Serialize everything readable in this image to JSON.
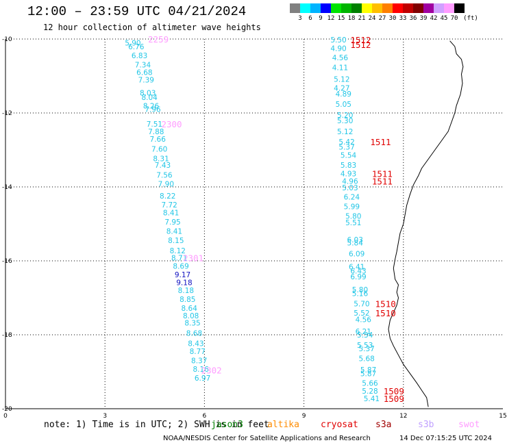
{
  "header": {
    "title": "12:00 – 23:59 UTC 04/21/2024",
    "subtitle": "12 hour collection of altimeter wave heights"
  },
  "color_scale": {
    "unit": "(ft)",
    "labels": [
      "3",
      "6",
      "9",
      "12",
      "15",
      "18",
      "21",
      "24",
      "27",
      "30",
      "33",
      "36",
      "39",
      "42",
      "45",
      "70"
    ],
    "colors": [
      "#808080",
      "#00ffff",
      "#00b4ff",
      "#0000ff",
      "#00e400",
      "#00b400",
      "#008000",
      "#ffff00",
      "#ffbf00",
      "#ff8000",
      "#ff0000",
      "#c00000",
      "#800000",
      "#a000a0",
      "#d0a0ff",
      "#ff9cff",
      "#000000"
    ]
  },
  "chart_data": {
    "type": "scatter",
    "title": "12:00 – 23:59 UTC 04/21/2024",
    "subtitle": "12 hour collection of altimeter wave heights",
    "xlim": [
      0,
      15
    ],
    "ylim": [
      -20,
      -10
    ],
    "x_ticks": [
      "0",
      "3",
      "6",
      "9",
      "12",
      "15"
    ],
    "y_ticks": [
      "-10",
      "-12",
      "-14",
      "-16",
      "-18",
      "-20"
    ],
    "grid": true,
    "legend_placement": "bottom",
    "track_a": {
      "lat": [
        -10.1,
        -10.2,
        -10.44,
        -10.69,
        -10.9,
        -11.1,
        -11.45,
        -11.57,
        -11.81,
        -11.9,
        -12.3,
        -12.5,
        -12.7,
        -12.97,
        -13.23,
        -13.41,
        -13.68,
        -13.92,
        -14.24,
        -14.48,
        -14.69,
        -14.94,
        -15.19,
        -15.44,
        -15.72,
        -15.92,
        -16.14,
        -16.37,
        -16.58,
        -16.8,
        -17.04,
        -17.28,
        -17.48,
        -17.68,
        -17.95,
        -18.23,
        -18.44,
        -18.69,
        -18.93,
        -19.17,
        -19.4,
        -19.68,
        -19.93
      ],
      "hs": [
        "5.90",
        "6.76",
        "6.83",
        "7.34",
        "6.68",
        "7.39",
        "8.03",
        "8.04",
        "8.26",
        "7.96",
        "7.51",
        "7.88",
        "7.66",
        "7.60",
        "8.31",
        "7.43",
        "7.56",
        "7.90",
        "8.22",
        "7.72",
        "8.41",
        "7.95",
        "8.41",
        "8.15",
        "8.12",
        "8.71",
        "8.69",
        "9.17",
        "9.18",
        "8.18",
        "8.85",
        "8.64",
        "8.08",
        "8.35",
        "8.68",
        "8.43",
        "8.77",
        "8.37",
        "8.16",
        "6.97",
        "",
        "",
        ""
      ],
      "lon": [
        3.6,
        3.7,
        3.8,
        3.9,
        3.95,
        4.0,
        4.05,
        4.1,
        4.15,
        4.2,
        4.25,
        4.3,
        4.35,
        4.4,
        4.45,
        4.5,
        4.55,
        4.6,
        4.65,
        4.7,
        4.75,
        4.8,
        4.85,
        4.9,
        4.95,
        5.0,
        5.05,
        5.1,
        5.15,
        5.2,
        5.25,
        5.3,
        5.35,
        5.4,
        5.45,
        5.5,
        5.55,
        5.6,
        5.65,
        5.7,
        5.75,
        5.8,
        5.85
      ]
    },
    "track_b": {
      "lat": [
        -10.02,
        -10.25,
        -10.5,
        -10.77,
        -11.08,
        -11.32,
        -11.48,
        -11.76,
        -12.06,
        -12.2,
        -12.5,
        -12.78,
        -12.92,
        -13.14,
        -13.41,
        -13.64,
        -13.84,
        -14.02,
        -14.27,
        -14.53,
        -14.79,
        -14.96,
        -15.43,
        -15.51,
        -15.81,
        -16.16,
        -16.27,
        -16.43,
        -16.78,
        -16.88,
        -17.16,
        -17.41,
        -17.58,
        -17.91,
        -18.0,
        -18.28,
        -18.37,
        -18.64,
        -18.94,
        -19.05,
        -19.31,
        -19.52,
        -19.72
      ],
      "hs": [
        "5.50",
        "4.90",
        "4.56",
        "4.11",
        "5.12",
        "4.27",
        "4.89",
        "5.05",
        "5.20",
        "5.30",
        "5.12",
        "5.42",
        "5.37",
        "5.54",
        "5.83",
        "4.93",
        "4.96",
        "5.03",
        "6.24",
        "5.99",
        "5.80",
        "5.51",
        "6.03",
        "5.84",
        "6.09",
        "6.41",
        "6.43",
        "6.99",
        "5.80",
        "5.16",
        "5.70",
        "5.52",
        "4.56",
        "6.21",
        "5.34",
        "5.53",
        "5.37",
        "5.68",
        "5.87",
        "5.87",
        "5.66",
        "5.28",
        "5.41"
      ],
      "lon": [
        9.8,
        9.8,
        9.85,
        9.85,
        9.9,
        9.9,
        9.95,
        9.95,
        10.0,
        10.0,
        10.0,
        10.05,
        10.05,
        10.1,
        10.1,
        10.1,
        10.15,
        10.15,
        10.2,
        10.2,
        10.25,
        10.25,
        10.3,
        10.3,
        10.35,
        10.35,
        10.4,
        10.4,
        10.45,
        10.45,
        10.5,
        10.5,
        10.55,
        10.55,
        10.6,
        10.6,
        10.65,
        10.65,
        10.7,
        10.7,
        10.75,
        10.75,
        10.8
      ]
    },
    "time_labels": [
      {
        "text": "2259",
        "lat": -10.0,
        "lon": 4.3,
        "color": "#ff9cff"
      },
      {
        "text": "2300",
        "lat": -12.3,
        "lon": 4.7,
        "color": "#ff9cff"
      },
      {
        "text": "2301",
        "lat": -15.92,
        "lon": 5.35,
        "color": "#ff9cff"
      },
      {
        "text": "2302",
        "lat": -18.95,
        "lon": 5.9,
        "color": "#ff9cff"
      },
      {
        "text": "1512",
        "lat": -10.02,
        "lon": 10.4,
        "color": "#e00000"
      },
      {
        "text": "1512",
        "lat": -10.15,
        "lon": 10.4,
        "color": "#e00000"
      },
      {
        "text": "1511",
        "lat": -12.78,
        "lon": 11.0,
        "color": "#e00000"
      },
      {
        "text": "1511",
        "lat": -13.64,
        "lon": 11.05,
        "color": "#e00000"
      },
      {
        "text": "1511",
        "lat": -13.84,
        "lon": 11.05,
        "color": "#e00000"
      },
      {
        "text": "1510",
        "lat": -17.16,
        "lon": 11.15,
        "color": "#e00000"
      },
      {
        "text": "1510",
        "lat": -17.41,
        "lon": 11.15,
        "color": "#e00000"
      },
      {
        "text": "1509",
        "lat": -19.52,
        "lon": 11.4,
        "color": "#e00000"
      },
      {
        "text": "1509",
        "lat": -19.72,
        "lon": 11.4,
        "color": "#e00000"
      }
    ],
    "coastline": [
      [
        13.4,
        -10.05
      ],
      [
        13.55,
        -10.2
      ],
      [
        13.6,
        -10.4
      ],
      [
        13.75,
        -10.55
      ],
      [
        13.8,
        -10.75
      ],
      [
        13.75,
        -10.95
      ],
      [
        13.78,
        -11.2
      ],
      [
        13.72,
        -11.5
      ],
      [
        13.6,
        -11.8
      ],
      [
        13.55,
        -12.0
      ],
      [
        13.45,
        -12.25
      ],
      [
        13.35,
        -12.5
      ],
      [
        13.15,
        -12.75
      ],
      [
        12.95,
        -13.0
      ],
      [
        12.75,
        -13.25
      ],
      [
        12.55,
        -13.5
      ],
      [
        12.45,
        -13.7
      ],
      [
        12.3,
        -13.95
      ],
      [
        12.2,
        -14.2
      ],
      [
        12.1,
        -14.5
      ],
      [
        12.05,
        -14.75
      ],
      [
        12.0,
        -15.0
      ],
      [
        11.9,
        -15.25
      ],
      [
        11.85,
        -15.5
      ],
      [
        11.8,
        -15.75
      ],
      [
        11.75,
        -15.95
      ],
      [
        11.7,
        -16.2
      ],
      [
        11.75,
        -16.5
      ],
      [
        11.85,
        -16.65
      ],
      [
        11.8,
        -16.85
      ],
      [
        11.85,
        -17.0
      ],
      [
        11.8,
        -17.2
      ],
      [
        11.7,
        -17.4
      ],
      [
        11.6,
        -17.6
      ],
      [
        11.55,
        -17.85
      ],
      [
        11.6,
        -18.1
      ],
      [
        11.7,
        -18.3
      ],
      [
        11.85,
        -18.55
      ],
      [
        12.0,
        -18.8
      ],
      [
        12.2,
        -19.05
      ],
      [
        12.4,
        -19.3
      ],
      [
        12.55,
        -19.5
      ],
      [
        12.7,
        -19.7
      ],
      [
        12.75,
        -19.95
      ]
    ]
  },
  "note": {
    "text": "note: 1) Time is in UTC; 2) SWH is in feet"
  },
  "missions": [
    {
      "name": "jason3",
      "color": "#008000"
    },
    {
      "name": "altika",
      "color": "#ff8c00"
    },
    {
      "name": "cryosat",
      "color": "#e00000"
    },
    {
      "name": "s3a",
      "color": "#a00000"
    },
    {
      "name": "s3b",
      "color": "#c0a0ff"
    },
    {
      "name": "swot",
      "color": "#ff9cff"
    }
  ],
  "footer": {
    "credit": "NOAA/NESDIS Center for Satellite Applications and Research",
    "timestamp": "14 Dec 07:15:25 UTC 2024"
  }
}
